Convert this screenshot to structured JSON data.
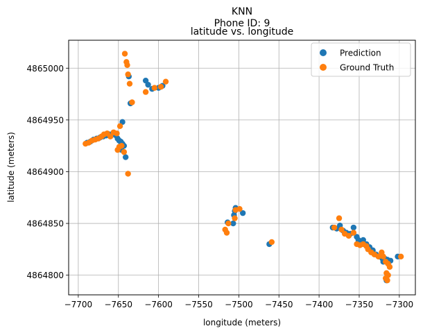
{
  "figure": {
    "suptitle_line1": "KNN",
    "suptitle_line2": "Phone ID: 9"
  },
  "chart_data": {
    "type": "scatter",
    "title": "latitude vs. longitude",
    "xlabel": "longitude (meters)",
    "ylabel": "latitude (meters)",
    "xlim": [
      -7712,
      -7280
    ],
    "ylim": [
      4864781,
      4865027
    ],
    "xticks": [
      -7700,
      -7650,
      -7600,
      -7550,
      -7500,
      -7450,
      -7400,
      -7350,
      -7300
    ],
    "yticks": [
      4864800,
      4864850,
      4864900,
      4864950,
      4865000
    ],
    "grid": true,
    "legend_position": "top-right",
    "series": [
      {
        "name": "Prediction",
        "color": "#1f77b4",
        "points": [
          [
            -7689,
            4864928
          ],
          [
            -7685,
            4864929
          ],
          [
            -7681,
            4864931
          ],
          [
            -7677,
            4864932
          ],
          [
            -7673,
            4864933
          ],
          [
            -7669,
            4864934
          ],
          [
            -7665,
            4864935
          ],
          [
            -7661,
            4864936
          ],
          [
            -7657,
            4864936
          ],
          [
            -7653,
            4864935
          ],
          [
            -7651,
            4864932
          ],
          [
            -7649,
            4864930
          ],
          [
            -7647,
            4864929
          ],
          [
            -7645,
            4864927
          ],
          [
            -7643,
            4864925
          ],
          [
            -7646,
            4864921
          ],
          [
            -7641,
            4864914
          ],
          [
            -7645,
            4864948
          ],
          [
            -7637,
            4864992
          ],
          [
            -7635,
            4864966
          ],
          [
            -7616,
            4864988
          ],
          [
            -7613,
            4864984
          ],
          [
            -7608,
            4864980
          ],
          [
            -7600,
            4864981
          ],
          [
            -7595,
            4864983
          ],
          [
            -7514,
            4864851
          ],
          [
            -7506,
            4864858
          ],
          [
            -7505,
            4864862
          ],
          [
            -7507,
            4864850
          ],
          [
            -7504,
            4864865
          ],
          [
            -7495,
            4864860
          ],
          [
            -7462,
            4864830
          ],
          [
            -7383,
            4864846
          ],
          [
            -7378,
            4864845
          ],
          [
            -7374,
            4864848
          ],
          [
            -7370,
            4864843
          ],
          [
            -7366,
            4864841
          ],
          [
            -7361,
            4864840
          ],
          [
            -7357,
            4864846
          ],
          [
            -7353,
            4864837
          ],
          [
            -7351,
            4864834
          ],
          [
            -7348,
            4864832
          ],
          [
            -7345,
            4864834
          ],
          [
            -7341,
            4864830
          ],
          [
            -7337,
            4864827
          ],
          [
            -7333,
            4864824
          ],
          [
            -7329,
            4864820
          ],
          [
            -7325,
            4864818
          ],
          [
            -7321,
            4864816
          ],
          [
            -7318,
            4864816
          ],
          [
            -7315,
            4864815
          ],
          [
            -7311,
            4864814
          ],
          [
            -7320,
            4864813
          ],
          [
            -7316,
            4864795
          ],
          [
            -7302,
            4864818
          ]
        ]
      },
      {
        "name": "Ground Truth",
        "color": "#ff7f0e",
        "points": [
          [
            -7691,
            4864927
          ],
          [
            -7687,
            4864928
          ],
          [
            -7683,
            4864930
          ],
          [
            -7679,
            4864931
          ],
          [
            -7675,
            4864932
          ],
          [
            -7671,
            4864934
          ],
          [
            -7668,
            4864936
          ],
          [
            -7664,
            4864937
          ],
          [
            -7660,
            4864934
          ],
          [
            -7656,
            4864938
          ],
          [
            -7652,
            4864937
          ],
          [
            -7648,
            4864944
          ],
          [
            -7651,
            4864921
          ],
          [
            -7649,
            4864924
          ],
          [
            -7646,
            4864925
          ],
          [
            -7643,
            4864919
          ],
          [
            -7638,
            4864898
          ],
          [
            -7642,
            4865014
          ],
          [
            -7640,
            4865006
          ],
          [
            -7639,
            4865003
          ],
          [
            -7638,
            4864994
          ],
          [
            -7636,
            4864985
          ],
          [
            -7633,
            4864967
          ],
          [
            -7616,
            4864977
          ],
          [
            -7605,
            4864981
          ],
          [
            -7597,
            4864982
          ],
          [
            -7591,
            4864987
          ],
          [
            -7517,
            4864844
          ],
          [
            -7515,
            4864841
          ],
          [
            -7513,
            4864850
          ],
          [
            -7505,
            4864855
          ],
          [
            -7504,
            4864863
          ],
          [
            -7499,
            4864864
          ],
          [
            -7459,
            4864832
          ],
          [
            -7381,
            4864846
          ],
          [
            -7375,
            4864855
          ],
          [
            -7372,
            4864844
          ],
          [
            -7368,
            4864840
          ],
          [
            -7363,
            4864838
          ],
          [
            -7357,
            4864841
          ],
          [
            -7353,
            4864830
          ],
          [
            -7349,
            4864829
          ],
          [
            -7345,
            4864830
          ],
          [
            -7341,
            4864828
          ],
          [
            -7339,
            4864825
          ],
          [
            -7335,
            4864822
          ],
          [
            -7331,
            4864820
          ],
          [
            -7326,
            4864818
          ],
          [
            -7322,
            4864822
          ],
          [
            -7320,
            4864818
          ],
          [
            -7317,
            4864813
          ],
          [
            -7314,
            4864811
          ],
          [
            -7312,
            4864808
          ],
          [
            -7316,
            4864802
          ],
          [
            -7314,
            4864800
          ],
          [
            -7317,
            4864797
          ],
          [
            -7315,
            4864795
          ],
          [
            -7298,
            4864818
          ]
        ]
      }
    ]
  }
}
